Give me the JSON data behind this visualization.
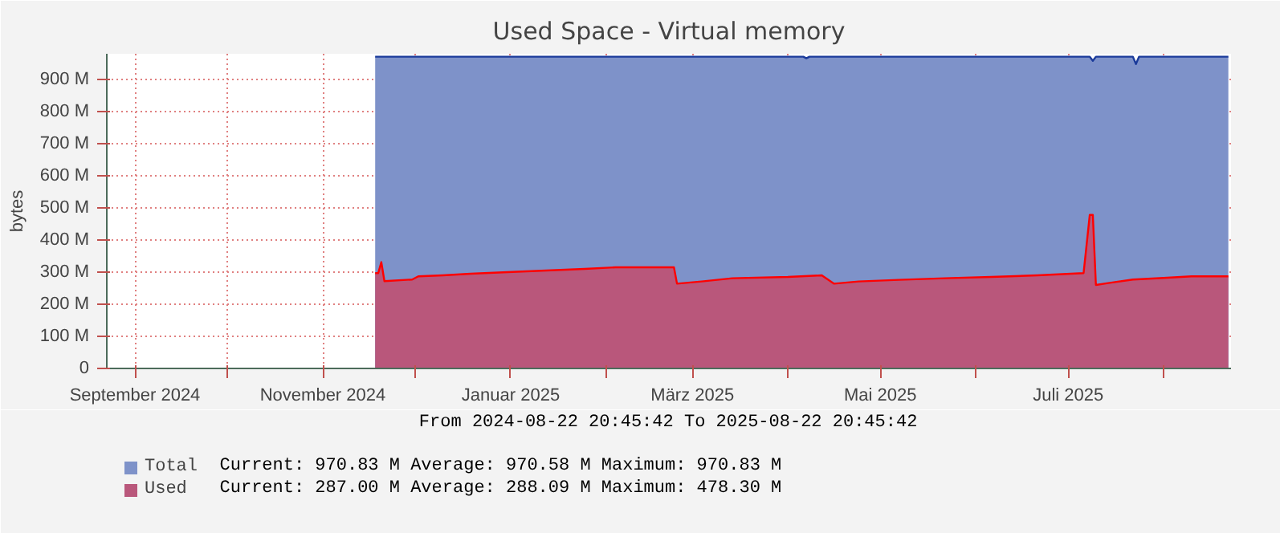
{
  "chart_data": {
    "type": "area",
    "title": "Used Space - Virtual memory",
    "ylabel": "bytes",
    "xlim": [
      "2024-08-22T20:45",
      "2025-08-22T20:45"
    ],
    "xticks": [
      {
        "value": "2024-09-01",
        "label": "September 2024"
      },
      {
        "value": "2024-10-01",
        "label": null
      },
      {
        "value": "2024-11-01",
        "label": "November 2024"
      },
      {
        "value": "2024-12-01",
        "label": null
      },
      {
        "value": "2025-01-01",
        "label": "Januar 2025"
      },
      {
        "value": "2025-02-01",
        "label": null
      },
      {
        "value": "2025-03-01",
        "label": "März 2025"
      },
      {
        "value": "2025-04-01",
        "label": null
      },
      {
        "value": "2025-05-01",
        "label": "Mai 2025"
      },
      {
        "value": "2025-06-01",
        "label": null
      },
      {
        "value": "2025-07-01",
        "label": "Juli 2025"
      },
      {
        "value": "2025-08-01",
        "label": null
      }
    ],
    "ylim": [
      0,
      980
    ],
    "yticks": [
      0,
      {
        "value": 100,
        "label": "100 M"
      },
      {
        "value": 200,
        "label": "200 M"
      },
      {
        "value": 300,
        "label": "300 M"
      },
      {
        "value": 400,
        "label": "400 M"
      },
      {
        "value": 500,
        "label": "500 M"
      },
      {
        "value": 600,
        "label": "600 M"
      },
      {
        "value": 700,
        "label": "700 M"
      },
      {
        "value": 800,
        "label": "800 M"
      },
      {
        "value": 900,
        "label": "900 M"
      }
    ],
    "grid": true,
    "legend": "bottom",
    "series": [
      {
        "name": "Total",
        "color": "#7e92c9",
        "x": [
          "2024-11-18",
          "2025-04-06",
          "2025-04-07",
          "2025-04-08",
          "2025-07-08",
          "2025-07-09",
          "2025-07-10",
          "2025-07-22",
          "2025-07-23",
          "2025-07-24",
          "2025-08-22"
        ],
        "values": [
          971,
          971,
          966,
          971,
          971,
          958,
          971,
          971,
          948,
          971,
          971
        ]
      },
      {
        "name": "Used",
        "color": "#b9577b",
        "x": [
          "2024-11-18",
          "2024-11-19",
          "2024-11-20",
          "2024-11-21",
          "2024-11-30",
          "2024-12-02",
          "2024-12-10",
          "2024-12-19",
          "2024-12-31",
          "2025-01-25",
          "2025-02-04",
          "2025-02-23",
          "2025-02-24",
          "2025-03-04",
          "2025-03-14",
          "2025-04-01",
          "2025-04-12",
          "2025-04-16",
          "2025-04-24",
          "2025-05-07",
          "2025-05-22",
          "2025-06-06",
          "2025-06-21",
          "2025-07-06",
          "2025-07-08",
          "2025-07-09",
          "2025-07-10",
          "2025-07-14",
          "2025-07-22",
          "2025-08-01",
          "2025-08-10",
          "2025-08-22"
        ],
        "values": [
          297,
          297,
          331,
          272,
          277,
          287,
          290,
          295,
          300,
          310,
          315,
          315,
          264,
          271,
          281,
          285,
          290,
          264,
          271,
          276,
          281,
          285,
          290,
          297,
          478,
          478,
          260,
          266,
          277,
          282,
          287,
          287
        ]
      }
    ],
    "annotations": [
      "From 2024-08-22 20:45:42 To 2025-08-22 20:45:42",
      "Current:  970.83 M  Average:  970.58 M  Maximum:  970.83 M",
      "Current:  287.00 M  Average:  288.09 M  Maximum:  478.30 M"
    ]
  }
}
